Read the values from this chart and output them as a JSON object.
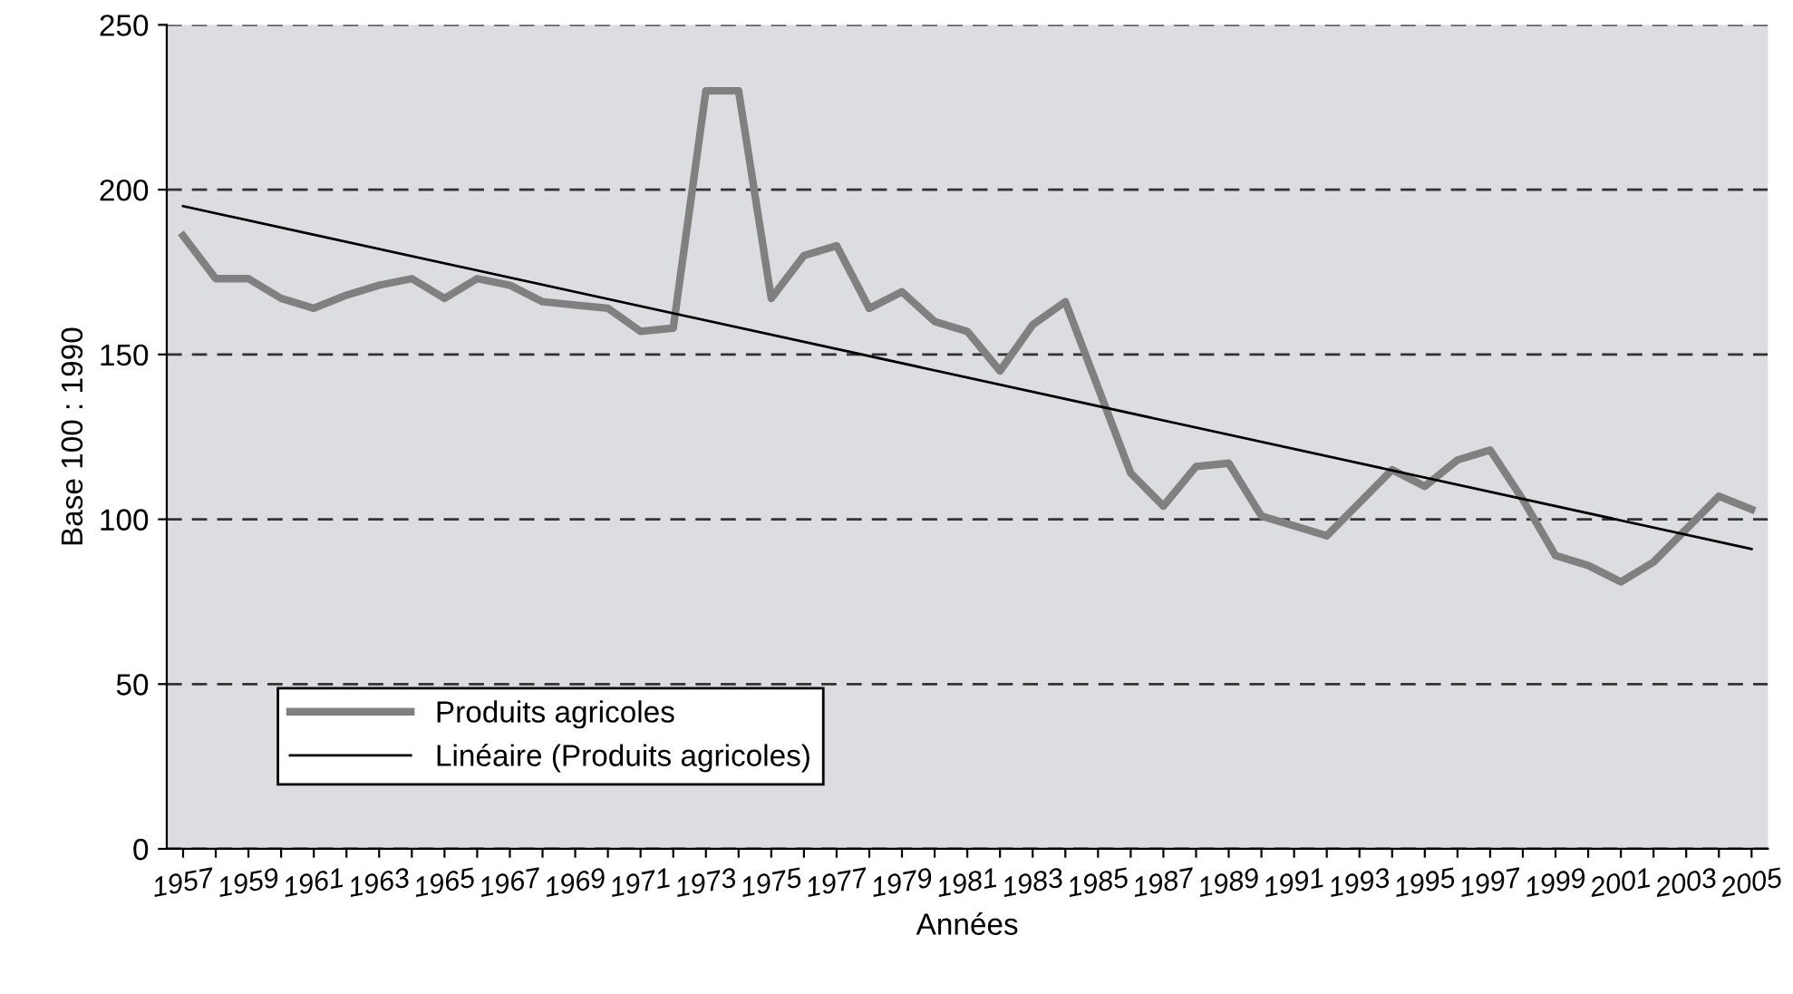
{
  "chart_data": {
    "type": "line",
    "xlabel": "Années",
    "ylabel": "Base 100 : 1990",
    "x": [
      1957,
      1958,
      1959,
      1960,
      1961,
      1962,
      1963,
      1964,
      1965,
      1966,
      1967,
      1968,
      1969,
      1970,
      1971,
      1972,
      1973,
      1974,
      1975,
      1976,
      1977,
      1978,
      1979,
      1980,
      1981,
      1982,
      1983,
      1984,
      1985,
      1986,
      1987,
      1988,
      1989,
      1990,
      1991,
      1992,
      1993,
      1994,
      1995,
      1996,
      1997,
      1998,
      1999,
      2000,
      2001,
      2002,
      2003,
      2004,
      2005
    ],
    "series": [
      {
        "name": "Produits agricoles",
        "color": "#808080",
        "values": [
          186,
          173,
          173,
          167,
          164,
          168,
          171,
          173,
          167,
          173,
          171,
          166,
          165,
          164,
          157,
          158,
          230,
          230,
          167,
          180,
          183,
          164,
          169,
          160,
          157,
          145,
          159,
          166,
          140,
          114,
          104,
          116,
          117,
          101,
          98,
          95,
          105,
          115,
          110,
          118,
          121,
          106,
          89,
          86,
          81,
          87,
          97,
          107,
          103
        ]
      },
      {
        "name": "Linéaire (Produits agricoles)",
        "color": "#000000",
        "x": [
          1957,
          2005
        ],
        "values": [
          195,
          91
        ]
      }
    ],
    "xlim": [
      1956.5,
      2005.5
    ],
    "xticks": [
      {
        "value": 1957,
        "label": "1957"
      },
      {
        "value": 1958,
        "label": null
      },
      {
        "value": 1959,
        "label": "1959"
      },
      {
        "value": 1960,
        "label": null
      },
      {
        "value": 1961,
        "label": "1961"
      },
      {
        "value": 1962,
        "label": null
      },
      {
        "value": 1963,
        "label": "1963"
      },
      {
        "value": 1964,
        "label": null
      },
      {
        "value": 1965,
        "label": "1965"
      },
      {
        "value": 1966,
        "label": null
      },
      {
        "value": 1967,
        "label": "1967"
      },
      {
        "value": 1968,
        "label": null
      },
      {
        "value": 1969,
        "label": "1969"
      },
      {
        "value": 1970,
        "label": null
      },
      {
        "value": 1971,
        "label": "1971"
      },
      {
        "value": 1972,
        "label": null
      },
      {
        "value": 1973,
        "label": "1973"
      },
      {
        "value": 1974,
        "label": null
      },
      {
        "value": 1975,
        "label": "1975"
      },
      {
        "value": 1976,
        "label": null
      },
      {
        "value": 1977,
        "label": "1977"
      },
      {
        "value": 1978,
        "label": null
      },
      {
        "value": 1979,
        "label": "1979"
      },
      {
        "value": 1980,
        "label": null
      },
      {
        "value": 1981,
        "label": "1981"
      },
      {
        "value": 1982,
        "label": null
      },
      {
        "value": 1983,
        "label": "1983"
      },
      {
        "value": 1984,
        "label": null
      },
      {
        "value": 1985,
        "label": "1985"
      },
      {
        "value": 1986,
        "label": null
      },
      {
        "value": 1987,
        "label": "1987"
      },
      {
        "value": 1988,
        "label": null
      },
      {
        "value": 1989,
        "label": "1989"
      },
      {
        "value": 1990,
        "label": null
      },
      {
        "value": 1991,
        "label": "1991"
      },
      {
        "value": 1992,
        "label": null
      },
      {
        "value": 1993,
        "label": "1993"
      },
      {
        "value": 1994,
        "label": null
      },
      {
        "value": 1995,
        "label": "1995"
      },
      {
        "value": 1996,
        "label": null
      },
      {
        "value": 1997,
        "label": "1997"
      },
      {
        "value": 1998,
        "label": null
      },
      {
        "value": 1999,
        "label": "1999"
      },
      {
        "value": 2000,
        "label": null
      },
      {
        "value": 2001,
        "label": "2001"
      },
      {
        "value": 2002,
        "label": null
      },
      {
        "value": 2003,
        "label": "2003"
      },
      {
        "value": 2004,
        "label": null
      },
      {
        "value": 2005,
        "label": "2005"
      }
    ],
    "ylim": [
      0,
      250
    ],
    "yticks": [
      0,
      50,
      100,
      150,
      200,
      250
    ],
    "grid": "y",
    "legend": "bottom left",
    "line_style": "solid",
    "marker": "none"
  }
}
